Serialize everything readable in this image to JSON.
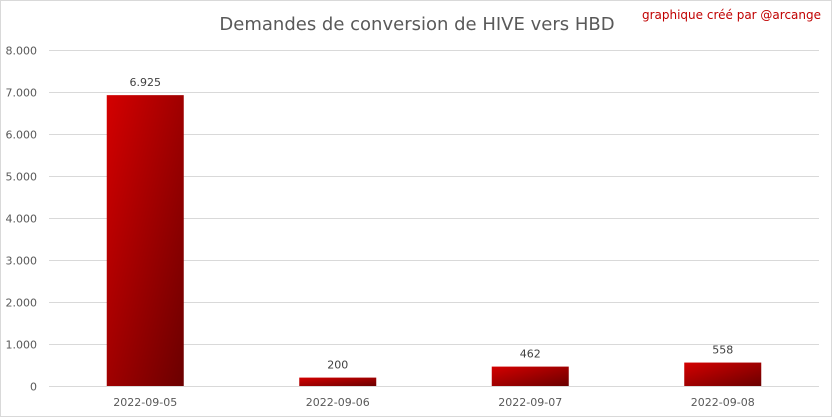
{
  "colors": {
    "bar_light": "#d40000",
    "bar_dark": "#6b0000",
    "grid": "#d9d9d9",
    "axis_text": "#595959",
    "credit": "#c00000"
  },
  "chart_data": {
    "type": "bar",
    "title": "Demandes de conversion de HIVE vers HBD",
    "annotation": "graphique créé par @arcange",
    "categories": [
      "2022-09-05",
      "2022-09-06",
      "2022-09-07",
      "2022-09-08"
    ],
    "values": [
      6925,
      200,
      462,
      558
    ],
    "data_labels": [
      "6.925",
      "200",
      "462",
      "558"
    ],
    "ylim": [
      0,
      8000
    ],
    "yticks": [
      0,
      1000,
      2000,
      3000,
      4000,
      5000,
      6000,
      7000,
      8000
    ],
    "ytick_labels": [
      "0",
      "1.000",
      "2.000",
      "3.000",
      "4.000",
      "5.000",
      "6.000",
      "7.000",
      "8.000"
    ],
    "xlabel": "",
    "ylabel": "",
    "grid": true,
    "legend": "none"
  }
}
